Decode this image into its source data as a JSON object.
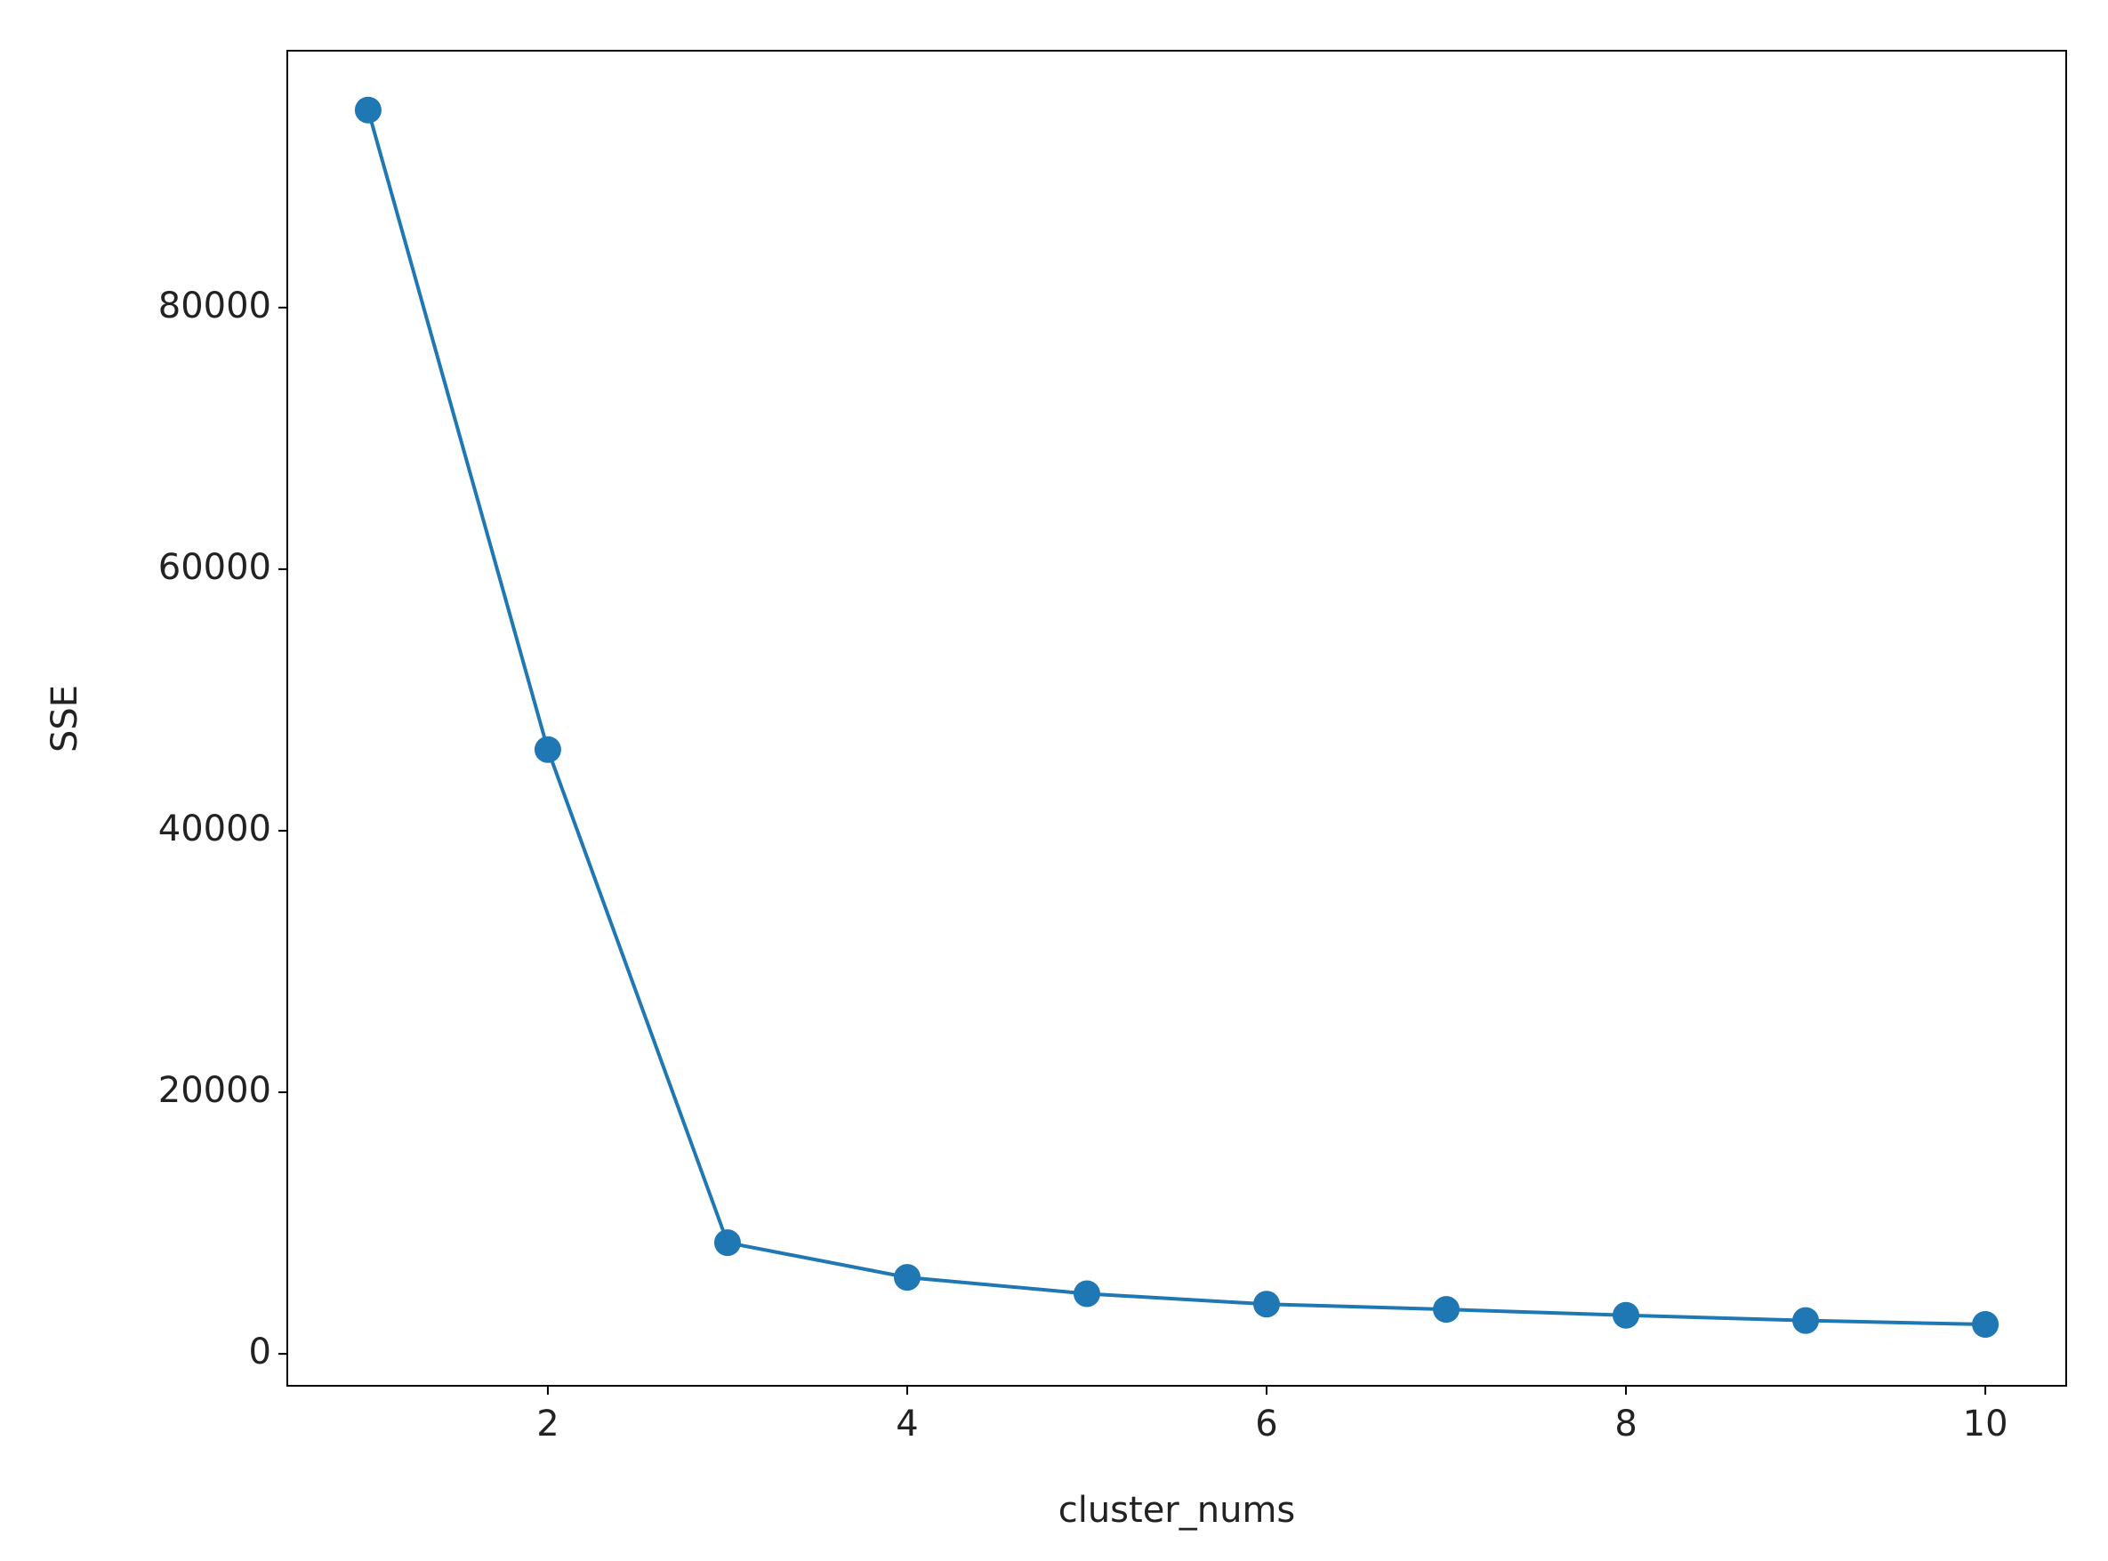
{
  "chart_data": {
    "type": "line",
    "xlabel": "cluster_nums",
    "ylabel": "SSE",
    "x": [
      1,
      2,
      3,
      4,
      5,
      6,
      7,
      8,
      9,
      10
    ],
    "series": [
      {
        "name": "SSE",
        "color": "#1f77b4",
        "values": [
          95100,
          46200,
          8500,
          5850,
          4600,
          3800,
          3400,
          2950,
          2550,
          2250
        ]
      }
    ],
    "xlim": [
      0.55,
      10.45
    ],
    "ylim": [
      -2440,
      99640
    ],
    "xticks": [
      2,
      4,
      6,
      8,
      10
    ],
    "yticks": [
      0,
      20000,
      40000,
      60000,
      80000
    ],
    "grid": false,
    "marker": "o"
  }
}
